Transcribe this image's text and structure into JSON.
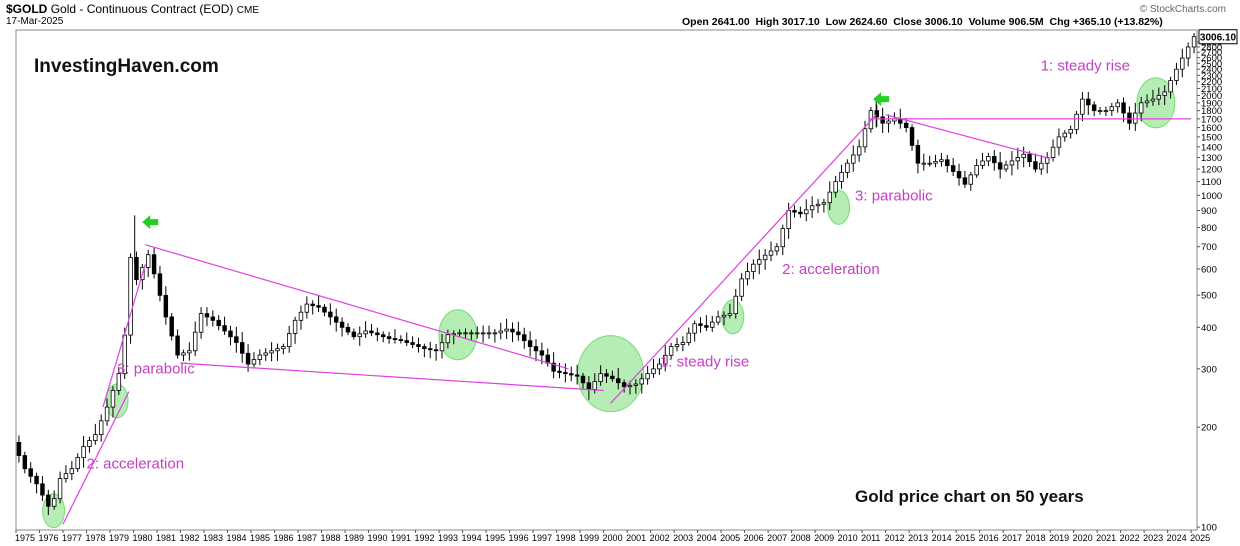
{
  "header": {
    "symbol": "$GOLD",
    "description": "Gold - Continuous Contract (EOD)",
    "exchange": "CME",
    "date": "17-Mar-2025",
    "ohlc_text": "Open 2641.00  High 3017.10  Low 2624.60  Close 3006.10  Volume 906.5M  Chg +365.10 (+13.82%)",
    "copyright": "© StockCharts.com"
  },
  "watermark": "InvestingHaven.com",
  "caption": "Gold price chart on 50 years",
  "chart_data": {
    "type": "candlestick",
    "scale": "log",
    "ylim": [
      98,
      3150
    ],
    "xlim": [
      1975,
      2025.25
    ],
    "last_price": 3006.1,
    "last_price_label": "3006.10",
    "y_ticks": [
      100,
      200,
      300,
      400,
      500,
      600,
      700,
      800,
      900,
      1000,
      1100,
      1200,
      1300,
      1400,
      1500,
      1600,
      1700,
      1800,
      1900,
      2000,
      2100,
      2200,
      2300,
      2400,
      2500,
      2600,
      2700,
      2800,
      2900
    ],
    "x_ticks": [
      "1975",
      "1976",
      "1977",
      "1978",
      "1979",
      "1980",
      "1981",
      "1982",
      "1983",
      "1984",
      "1985",
      "1986",
      "1987",
      "1988",
      "1989",
      "1990",
      "1991",
      "1992",
      "1993",
      "1994",
      "1995",
      "1996",
      "1997",
      "1998",
      "1999",
      "2000",
      "2001",
      "2002",
      "2003",
      "2004",
      "2005",
      "2006",
      "2007",
      "2008",
      "2009",
      "2010",
      "2011",
      "2012",
      "2013",
      "2014",
      "2015",
      "2016",
      "2017",
      "2018",
      "2019",
      "2020",
      "2021",
      "2022",
      "2023",
      "2024",
      "2025"
    ],
    "price_path": [
      [
        1975.0,
        180
      ],
      [
        1975.5,
        150
      ],
      [
        1976.0,
        135
      ],
      [
        1976.6,
        112
      ],
      [
        1977.0,
        140
      ],
      [
        1977.5,
        150
      ],
      [
        1978.0,
        175
      ],
      [
        1978.5,
        190
      ],
      [
        1979.0,
        230
      ],
      [
        1979.5,
        290
      ],
      [
        1979.8,
        400
      ],
      [
        1980.0,
        650
      ],
      [
        1980.3,
        540
      ],
      [
        1980.7,
        680
      ],
      [
        1981.0,
        580
      ],
      [
        1981.5,
        430
      ],
      [
        1982.0,
        330
      ],
      [
        1982.5,
        340
      ],
      [
        1983.0,
        440
      ],
      [
        1983.5,
        420
      ],
      [
        1984.0,
        390
      ],
      [
        1984.5,
        360
      ],
      [
        1985.0,
        310
      ],
      [
        1985.5,
        330
      ],
      [
        1986.0,
        340
      ],
      [
        1986.5,
        350
      ],
      [
        1987.0,
        420
      ],
      [
        1987.5,
        470
      ],
      [
        1988.0,
        460
      ],
      [
        1988.5,
        430
      ],
      [
        1989.0,
        400
      ],
      [
        1989.5,
        375
      ],
      [
        1990.0,
        390
      ],
      [
        1990.5,
        380
      ],
      [
        1991.0,
        370
      ],
      [
        1991.5,
        365
      ],
      [
        1992.0,
        355
      ],
      [
        1992.5,
        345
      ],
      [
        1993.0,
        340
      ],
      [
        1993.5,
        380
      ],
      [
        1994.0,
        385
      ],
      [
        1994.5,
        385
      ],
      [
        1995.0,
        385
      ],
      [
        1995.5,
        385
      ],
      [
        1996.0,
        395
      ],
      [
        1996.5,
        380
      ],
      [
        1997.0,
        350
      ],
      [
        1997.5,
        330
      ],
      [
        1998.0,
        295
      ],
      [
        1998.5,
        290
      ],
      [
        1999.0,
        285
      ],
      [
        1999.5,
        260
      ],
      [
        2000.0,
        290
      ],
      [
        2000.5,
        280
      ],
      [
        2001.0,
        265
      ],
      [
        2001.5,
        270
      ],
      [
        2002.0,
        290
      ],
      [
        2002.5,
        310
      ],
      [
        2003.0,
        350
      ],
      [
        2003.5,
        360
      ],
      [
        2004.0,
        410
      ],
      [
        2004.5,
        400
      ],
      [
        2005.0,
        430
      ],
      [
        2005.5,
        440
      ],
      [
        2006.0,
        560
      ],
      [
        2006.5,
        620
      ],
      [
        2007.0,
        660
      ],
      [
        2007.5,
        700
      ],
      [
        2008.0,
        900
      ],
      [
        2008.5,
        880
      ],
      [
        2009.0,
        930
      ],
      [
        2009.5,
        950
      ],
      [
        2010.0,
        1100
      ],
      [
        2010.5,
        1250
      ],
      [
        2011.0,
        1400
      ],
      [
        2011.5,
        1800
      ],
      [
        2012.0,
        1650
      ],
      [
        2012.5,
        1700
      ],
      [
        2013.0,
        1600
      ],
      [
        2013.5,
        1250
      ],
      [
        2014.0,
        1250
      ],
      [
        2014.5,
        1280
      ],
      [
        2015.0,
        1180
      ],
      [
        2015.5,
        1080
      ],
      [
        2016.0,
        1230
      ],
      [
        2016.5,
        1310
      ],
      [
        2017.0,
        1200
      ],
      [
        2017.5,
        1270
      ],
      [
        2018.0,
        1330
      ],
      [
        2018.5,
        1200
      ],
      [
        2019.0,
        1300
      ],
      [
        2019.5,
        1500
      ],
      [
        2020.0,
        1580
      ],
      [
        2020.5,
        1950
      ],
      [
        2021.0,
        1800
      ],
      [
        2021.5,
        1800
      ],
      [
        2022.0,
        1900
      ],
      [
        2022.5,
        1650
      ],
      [
        2023.0,
        1900
      ],
      [
        2023.5,
        1950
      ],
      [
        2024.0,
        2050
      ],
      [
        2024.5,
        2400
      ],
      [
        2025.0,
        2800
      ],
      [
        2025.2,
        3006
      ]
    ],
    "trendlines": [
      {
        "from": [
          1977.0,
          102
        ],
        "to": [
          1979.8,
          256
        ]
      },
      {
        "from": [
          1978.7,
          230
        ],
        "to": [
          1980.5,
          620
        ]
      },
      {
        "from": [
          1980.5,
          710
        ],
        "to": [
          1998.5,
          300
        ]
      },
      {
        "from": [
          1982.0,
          312
        ],
        "to": [
          2000.0,
          258
        ]
      },
      {
        "from": [
          2000.3,
          236
        ],
        "to": [
          2011.6,
          1750
        ]
      },
      {
        "from": [
          2011.3,
          1700
        ],
        "to": [
          2025.0,
          1700
        ]
      },
      {
        "from": [
          2012.0,
          1750
        ],
        "to": [
          2019.0,
          1290
        ]
      }
    ],
    "highlight_circles": [
      [
        1976.6,
        112
      ],
      [
        1979.3,
        240
      ],
      [
        1993.8,
        380
      ],
      [
        2000.3,
        290
      ],
      [
        2005.5,
        430
      ],
      [
        2010.0,
        920
      ],
      [
        2023.5,
        1900
      ]
    ],
    "arrows": [
      [
        1980.2,
        830
      ],
      [
        2011.3,
        1950
      ]
    ],
    "annotations": [
      {
        "text": "2: acceleration",
        "x": 1978.0,
        "y": 150
      },
      {
        "text": "3: parabolic",
        "x": 1979.3,
        "y": 290
      },
      {
        "text": "1: steady rise",
        "x": 2002.4,
        "y": 305
      },
      {
        "text": "2: acceleration",
        "x": 2007.6,
        "y": 580
      },
      {
        "text": "3: parabolic",
        "x": 2010.7,
        "y": 965
      },
      {
        "text": "1: steady rise",
        "x": 2018.6,
        "y": 2380
      }
    ],
    "colors": {
      "trendline": "#e040e0",
      "annotation": "#c83cc8",
      "highlight": "#5cd65c",
      "arrow": "#22d022",
      "candle": "#000000"
    }
  }
}
